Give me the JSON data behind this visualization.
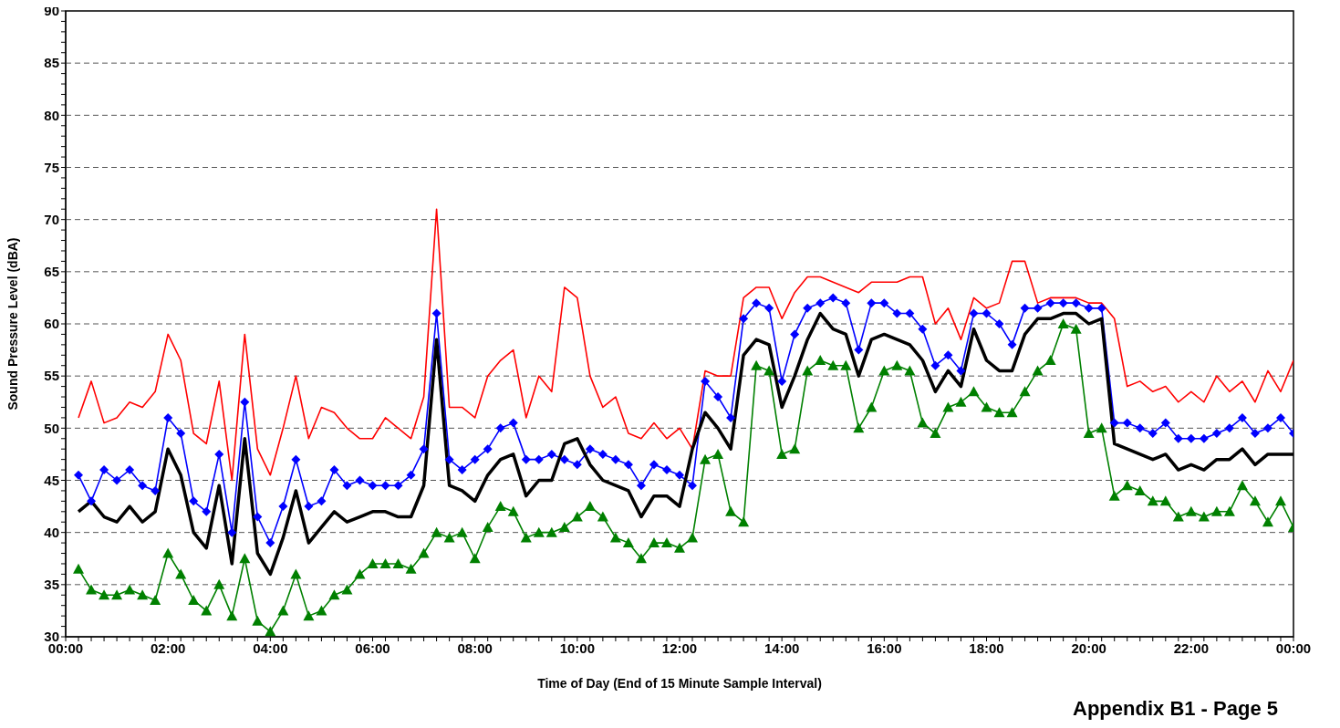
{
  "chart_data": {
    "type": "line",
    "xlabel": "Time of Day (End of 15 Minute Sample Interval)",
    "ylabel": "Sound Pressure Level (dBA)",
    "annotations": [
      "Appendix B1 - Page 5"
    ],
    "x": [
      0.25,
      0.5,
      0.75,
      1,
      1.25,
      1.5,
      1.75,
      2,
      2.25,
      2.5,
      2.75,
      3,
      3.25,
      3.5,
      3.75,
      4,
      4.25,
      4.5,
      4.75,
      5,
      5.25,
      5.5,
      5.75,
      6,
      6.25,
      6.5,
      6.75,
      7,
      7.25,
      7.5,
      7.75,
      8,
      8.25,
      8.5,
      8.75,
      9,
      9.25,
      9.5,
      9.75,
      10,
      10.25,
      10.5,
      10.75,
      11,
      11.25,
      11.5,
      11.75,
      12,
      12.25,
      12.5,
      12.75,
      13,
      13.25,
      13.5,
      13.75,
      14,
      14.25,
      14.5,
      14.75,
      15,
      15.25,
      15.5,
      15.75,
      16,
      16.25,
      16.5,
      16.75,
      17,
      17.25,
      17.5,
      17.75,
      18,
      18.25,
      18.5,
      18.75,
      19,
      19.25,
      19.5,
      19.75,
      20,
      20.25,
      20.5,
      20.75,
      21,
      21.25,
      21.5,
      21.75,
      22,
      22.25,
      22.5,
      22.75,
      23,
      23.25,
      23.5,
      23.75,
      24
    ],
    "series": [
      {
        "color": "#ff0000",
        "marker": "none",
        "values": [
          51,
          54.5,
          50.5,
          51,
          52.5,
          52,
          53.5,
          59,
          56.5,
          49.5,
          48.5,
          54.5,
          45,
          59,
          48,
          45.5,
          50,
          55,
          49,
          52,
          51.5,
          50,
          49,
          49,
          51,
          50,
          49,
          53,
          71,
          52,
          52,
          51,
          55,
          56.5,
          57.5,
          51,
          55,
          53.5,
          63.5,
          62.5,
          55,
          52,
          53,
          49.5,
          49,
          50.5,
          49,
          50,
          48,
          55.5,
          55,
          55,
          62.5,
          63.5,
          63.5,
          60.5,
          63,
          64.5,
          64.5,
          64,
          63.5,
          63,
          64,
          64,
          64,
          64.5,
          64.5,
          60,
          61.5,
          58.5,
          62.5,
          61.5,
          62,
          66,
          66,
          62,
          62.5,
          62.5,
          62.5,
          62,
          62,
          60.5,
          54,
          54.5,
          53.5,
          54,
          52.5,
          53.5,
          52.5,
          55,
          53.5,
          54.5,
          52.5,
          55.5,
          53.5,
          56.5
        ]
      },
      {
        "color": "#0000ff",
        "marker": "diamond",
        "values": [
          45.5,
          43,
          46,
          45,
          46,
          44.5,
          44,
          51,
          49.5,
          43,
          42,
          47.5,
          40,
          52.5,
          41.5,
          39,
          42.5,
          47,
          42.5,
          43,
          46,
          44.5,
          45,
          44.5,
          44.5,
          44.5,
          45.5,
          48,
          61,
          47,
          46,
          47,
          48,
          50,
          50.5,
          47,
          47,
          47.5,
          47,
          46.5,
          48,
          47.5,
          47,
          46.5,
          44.5,
          46.5,
          46,
          45.5,
          44.5,
          54.5,
          53,
          51,
          60.5,
          62,
          61.5,
          54.5,
          59,
          61.5,
          62,
          62.5,
          62,
          57.5,
          62,
          62,
          61,
          61,
          59.5,
          56,
          57,
          55.5,
          61,
          61,
          60,
          58,
          61.5,
          61.5,
          62,
          62,
          62,
          61.5,
          61.5,
          50.5,
          50.5,
          50,
          49.5,
          50.5,
          49,
          49,
          49,
          49.5,
          50,
          51,
          49.5,
          50,
          51,
          49.5
        ]
      },
      {
        "color": "#000000",
        "marker": "none",
        "values": [
          42,
          43,
          41.5,
          41,
          42.5,
          41,
          42,
          48,
          45.5,
          40,
          38.5,
          44.5,
          37,
          49,
          38,
          36,
          39.5,
          44,
          39,
          40.5,
          42,
          41,
          41.5,
          42,
          42,
          41.5,
          41.5,
          44.5,
          58.5,
          44.5,
          44,
          43,
          45.5,
          47,
          47.5,
          43.5,
          45,
          45,
          48.5,
          49,
          46.5,
          45,
          44.5,
          44,
          41.5,
          43.5,
          43.5,
          42.5,
          48,
          51.5,
          50,
          48,
          57,
          58.5,
          58,
          52,
          55,
          58.5,
          61,
          59.5,
          59,
          55,
          58.5,
          59,
          58.5,
          58,
          56.5,
          53.5,
          55.5,
          54,
          59.5,
          56.5,
          55.5,
          55.5,
          59,
          60.5,
          60.5,
          61,
          61,
          60,
          60.5,
          48.5,
          48,
          47.5,
          47,
          47.5,
          46,
          46.5,
          46,
          47,
          47,
          48,
          46.5,
          47.5,
          47.5,
          47.5
        ]
      },
      {
        "color": "#008000",
        "marker": "triangle",
        "values": [
          36.5,
          34.5,
          34,
          34,
          34.5,
          34,
          33.5,
          38,
          36,
          33.5,
          32.5,
          35,
          32,
          37.5,
          31.5,
          30.5,
          32.5,
          36,
          32,
          32.5,
          34,
          34.5,
          36,
          37,
          37,
          37,
          36.5,
          38,
          40,
          39.5,
          40,
          37.5,
          40.5,
          42.5,
          42,
          39.5,
          40,
          40,
          40.5,
          41.5,
          42.5,
          41.5,
          39.5,
          39,
          37.5,
          39,
          39,
          38.5,
          39.5,
          47,
          47.5,
          42,
          41,
          56,
          55.5,
          47.5,
          48,
          55.5,
          56.5,
          56,
          56,
          50,
          52,
          55.5,
          56,
          55.5,
          50.5,
          49.5,
          52,
          52.5,
          53.5,
          52,
          51.5,
          51.5,
          53.5,
          55.5,
          56.5,
          60,
          59.5,
          49.5,
          50,
          43.5,
          44.5,
          44,
          43,
          43,
          41.5,
          42,
          41.5,
          42,
          42,
          44.5,
          43,
          41,
          43,
          40.5
        ]
      }
    ],
    "xlim": [
      0,
      24
    ],
    "xticks": [
      {
        "value": 0,
        "label": "00:00"
      },
      {
        "value": 0.25,
        "label": null
      },
      {
        "value": 0.5,
        "label": null
      },
      {
        "value": 0.75,
        "label": null
      },
      {
        "value": 1,
        "label": null
      },
      {
        "value": 1.25,
        "label": null
      },
      {
        "value": 1.5,
        "label": null
      },
      {
        "value": 1.75,
        "label": null
      },
      {
        "value": 2,
        "label": "02:00"
      },
      {
        "value": 2.25,
        "label": null
      },
      {
        "value": 2.5,
        "label": null
      },
      {
        "value": 2.75,
        "label": null
      },
      {
        "value": 3,
        "label": null
      },
      {
        "value": 3.25,
        "label": null
      },
      {
        "value": 3.5,
        "label": null
      },
      {
        "value": 3.75,
        "label": null
      },
      {
        "value": 4,
        "label": "04:00"
      },
      {
        "value": 4.25,
        "label": null
      },
      {
        "value": 4.5,
        "label": null
      },
      {
        "value": 4.75,
        "label": null
      },
      {
        "value": 5,
        "label": null
      },
      {
        "value": 5.25,
        "label": null
      },
      {
        "value": 5.5,
        "label": null
      },
      {
        "value": 5.75,
        "label": null
      },
      {
        "value": 6,
        "label": "06:00"
      },
      {
        "value": 6.25,
        "label": null
      },
      {
        "value": 6.5,
        "label": null
      },
      {
        "value": 6.75,
        "label": null
      },
      {
        "value": 7,
        "label": null
      },
      {
        "value": 7.25,
        "label": null
      },
      {
        "value": 7.5,
        "label": null
      },
      {
        "value": 7.75,
        "label": null
      },
      {
        "value": 8,
        "label": "08:00"
      },
      {
        "value": 8.25,
        "label": null
      },
      {
        "value": 8.5,
        "label": null
      },
      {
        "value": 8.75,
        "label": null
      },
      {
        "value": 9,
        "label": null
      },
      {
        "value": 9.25,
        "label": null
      },
      {
        "value": 9.5,
        "label": null
      },
      {
        "value": 9.75,
        "label": null
      },
      {
        "value": 10,
        "label": "10:00"
      },
      {
        "value": 10.25,
        "label": null
      },
      {
        "value": 10.5,
        "label": null
      },
      {
        "value": 10.75,
        "label": null
      },
      {
        "value": 11,
        "label": null
      },
      {
        "value": 11.25,
        "label": null
      },
      {
        "value": 11.5,
        "label": null
      },
      {
        "value": 11.75,
        "label": null
      },
      {
        "value": 12,
        "label": "12:00"
      },
      {
        "value": 12.25,
        "label": null
      },
      {
        "value": 12.5,
        "label": null
      },
      {
        "value": 12.75,
        "label": null
      },
      {
        "value": 13,
        "label": null
      },
      {
        "value": 13.25,
        "label": null
      },
      {
        "value": 13.5,
        "label": null
      },
      {
        "value": 13.75,
        "label": null
      },
      {
        "value": 14,
        "label": "14:00"
      },
      {
        "value": 14.25,
        "label": null
      },
      {
        "value": 14.5,
        "label": null
      },
      {
        "value": 14.75,
        "label": null
      },
      {
        "value": 15,
        "label": null
      },
      {
        "value": 15.25,
        "label": null
      },
      {
        "value": 15.5,
        "label": null
      },
      {
        "value": 15.75,
        "label": null
      },
      {
        "value": 16,
        "label": "16:00"
      },
      {
        "value": 16.25,
        "label": null
      },
      {
        "value": 16.5,
        "label": null
      },
      {
        "value": 16.75,
        "label": null
      },
      {
        "value": 17,
        "label": null
      },
      {
        "value": 17.25,
        "label": null
      },
      {
        "value": 17.5,
        "label": null
      },
      {
        "value": 17.75,
        "label": null
      },
      {
        "value": 18,
        "label": "18:00"
      },
      {
        "value": 18.25,
        "label": null
      },
      {
        "value": 18.5,
        "label": null
      },
      {
        "value": 18.75,
        "label": null
      },
      {
        "value": 19,
        "label": null
      },
      {
        "value": 19.25,
        "label": null
      },
      {
        "value": 19.5,
        "label": null
      },
      {
        "value": 19.75,
        "label": null
      },
      {
        "value": 20,
        "label": "20:00"
      },
      {
        "value": 20.25,
        "label": null
      },
      {
        "value": 20.5,
        "label": null
      },
      {
        "value": 20.75,
        "label": null
      },
      {
        "value": 21,
        "label": null
      },
      {
        "value": 21.25,
        "label": null
      },
      {
        "value": 21.5,
        "label": null
      },
      {
        "value": 21.75,
        "label": null
      },
      {
        "value": 22,
        "label": "22:00"
      },
      {
        "value": 22.25,
        "label": null
      },
      {
        "value": 22.5,
        "label": null
      },
      {
        "value": 22.75,
        "label": null
      },
      {
        "value": 23,
        "label": null
      },
      {
        "value": 23.25,
        "label": null
      },
      {
        "value": 23.5,
        "label": null
      },
      {
        "value": 23.75,
        "label": null
      },
      {
        "value": 24,
        "label": "00:00"
      }
    ],
    "ylim": [
      30,
      90
    ],
    "yticks": [
      30,
      {
        "value": 31,
        "label": null
      },
      {
        "value": 32,
        "label": null
      },
      {
        "value": 33,
        "label": null
      },
      {
        "value": 34,
        "label": null
      },
      35,
      {
        "value": 36,
        "label": null
      },
      {
        "value": 37,
        "label": null
      },
      {
        "value": 38,
        "label": null
      },
      {
        "value": 39,
        "label": null
      },
      40,
      {
        "value": 41,
        "label": null
      },
      {
        "value": 42,
        "label": null
      },
      {
        "value": 43,
        "label": null
      },
      {
        "value": 44,
        "label": null
      },
      45,
      {
        "value": 46,
        "label": null
      },
      {
        "value": 47,
        "label": null
      },
      {
        "value": 48,
        "label": null
      },
      {
        "value": 49,
        "label": null
      },
      50,
      {
        "value": 51,
        "label": null
      },
      {
        "value": 52,
        "label": null
      },
      {
        "value": 53,
        "label": null
      },
      {
        "value": 54,
        "label": null
      },
      55,
      {
        "value": 56,
        "label": null
      },
      {
        "value": 57,
        "label": null
      },
      {
        "value": 58,
        "label": null
      },
      {
        "value": 59,
        "label": null
      },
      60,
      {
        "value": 61,
        "label": null
      },
      {
        "value": 62,
        "label": null
      },
      {
        "value": 63,
        "label": null
      },
      {
        "value": 64,
        "label": null
      },
      65,
      {
        "value": 66,
        "label": null
      },
      {
        "value": 67,
        "label": null
      },
      {
        "value": 68,
        "label": null
      },
      {
        "value": 69,
        "label": null
      },
      70,
      {
        "value": 71,
        "label": null
      },
      {
        "value": 72,
        "label": null
      },
      {
        "value": 73,
        "label": null
      },
      {
        "value": 74,
        "label": null
      },
      75,
      {
        "value": 76,
        "label": null
      },
      {
        "value": 77,
        "label": null
      },
      {
        "value": 78,
        "label": null
      },
      {
        "value": 79,
        "label": null
      },
      80,
      {
        "value": 81,
        "label": null
      },
      {
        "value": 82,
        "label": null
      },
      {
        "value": 83,
        "label": null
      },
      {
        "value": 84,
        "label": null
      },
      85,
      {
        "value": 86,
        "label": null
      },
      {
        "value": 87,
        "label": null
      },
      {
        "value": 88,
        "label": null
      },
      {
        "value": 89,
        "label": null
      },
      90
    ],
    "grid": "y",
    "line_style": "solid"
  }
}
